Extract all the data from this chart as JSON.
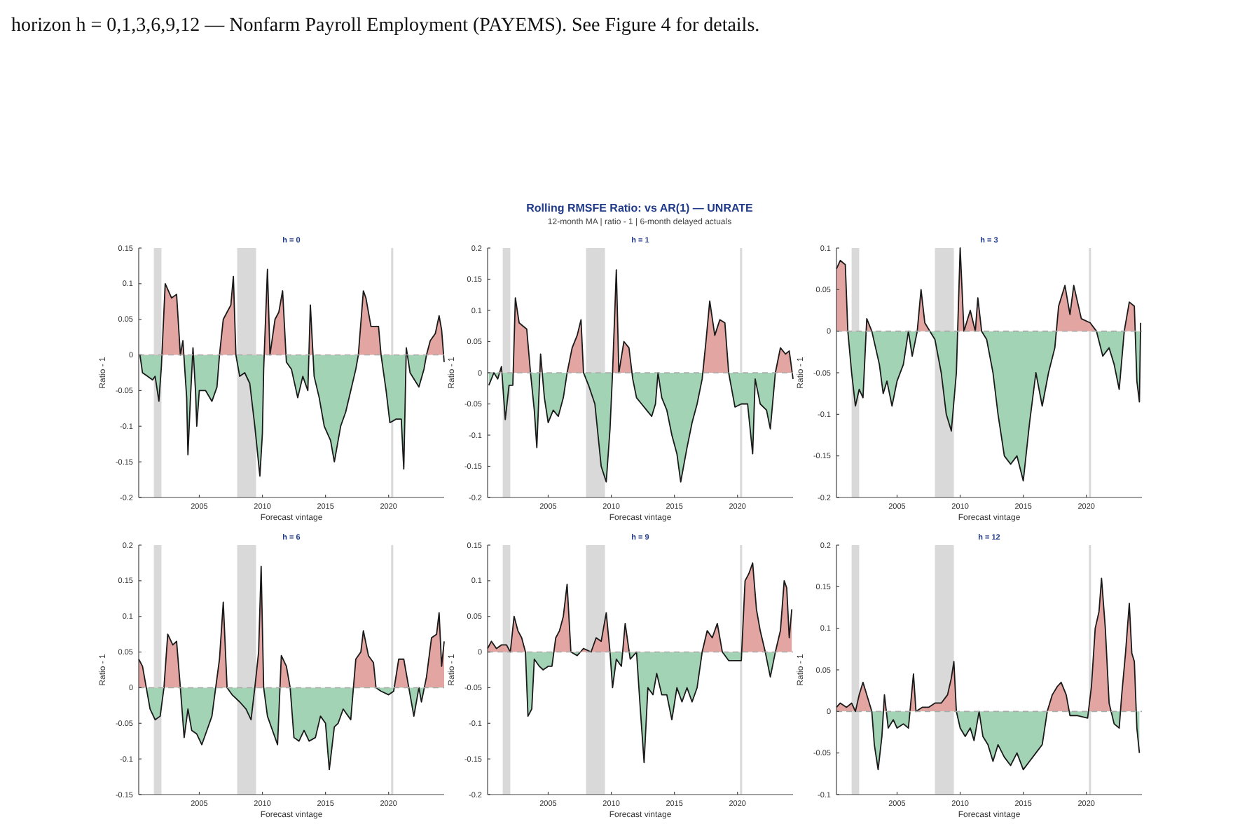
{
  "chart_data": [
    {
      "type": "area",
      "title": "h = 0",
      "xlabel": "Forecast vintage",
      "ylabel": "Ratio - 1",
      "xlim": [
        2000.2,
        2024.4
      ],
      "xticks": [
        2005,
        2010,
        2015,
        2020
      ],
      "ylim": [
        -0.2,
        0.15
      ],
      "yticks": [
        -0.2,
        -0.15,
        -0.1,
        -0.05,
        0,
        0.05,
        0.1,
        0.15
      ],
      "colors": [
        "#e3a5a1",
        "#a3d3b5"
      ],
      "annotations": [
        "horizon h = 0,1,3,6,9,12 — Nonfarm Payroll Employment (PAYEMS). See Figure 4 for details.",
        "Rolling RMSFE Ratio: vs AR(1) — UNRATE",
        "12-month MA  |  ratio - 1  |  6-month delayed actuals"
      ],
      "bands": [
        {
          "axis": "x",
          "from": 2001.4,
          "to": 2002.0,
          "color": "#d9d9d9"
        },
        {
          "axis": "x",
          "from": 2008.0,
          "to": 2009.5,
          "color": "#d9d9d9"
        },
        {
          "axis": "x",
          "from": 2020.2,
          "to": 2020.35,
          "color": "#d9d9d9"
        }
      ],
      "ref_lines": [
        {
          "axis": "y",
          "value": 0,
          "color": "#aaaaaa",
          "line_style": "dashed"
        }
      ],
      "series": [
        {
          "color": "#1a1a1a",
          "x": [
            2000.3,
            2000.5,
            2000.9,
            2001.3,
            2001.5,
            2001.8,
            2002.0,
            2002.3,
            2002.8,
            2003.2,
            2003.5,
            2003.7,
            2004.0,
            2004.1,
            2004.3,
            2004.5,
            2004.7,
            2004.8,
            2005.0,
            2005.5,
            2006.0,
            2006.4,
            2006.6,
            2006.9,
            2007.2,
            2007.5,
            2007.7,
            2007.9,
            2008.2,
            2008.6,
            2009.0,
            2009.4,
            2009.8,
            2010.0,
            2010.1,
            2010.4,
            2010.6,
            2011.0,
            2011.3,
            2011.6,
            2011.9,
            2012.3,
            2012.8,
            2013.2,
            2013.6,
            2013.8,
            2014.1,
            2014.5,
            2014.9,
            2015.4,
            2015.7,
            2016.2,
            2016.6,
            2017.0,
            2017.4,
            2017.6,
            2018.0,
            2018.2,
            2018.6,
            2019.2,
            2019.4,
            2019.8,
            2020.1,
            2020.6,
            2021.0,
            2021.2,
            2021.4,
            2021.7,
            2022.4,
            2022.8,
            2023.0,
            2023.3,
            2023.7,
            2024.0,
            2024.2,
            2024.4
          ],
          "values": [
            0,
            -0.025,
            -0.03,
            -0.035,
            -0.03,
            -0.065,
            -0.015,
            0.1,
            0.08,
            0.085,
            0,
            0.02,
            -0.06,
            -0.14,
            -0.06,
            0.01,
            -0.05,
            -0.1,
            -0.05,
            -0.05,
            -0.065,
            -0.045,
            0,
            0.05,
            0.06,
            0.07,
            0.11,
            0,
            -0.03,
            -0.025,
            -0.04,
            -0.1,
            -0.17,
            -0.11,
            -0.02,
            0.12,
            0,
            0.05,
            0.06,
            0.09,
            -0.01,
            -0.02,
            -0.06,
            -0.03,
            -0.05,
            0.07,
            -0.03,
            -0.06,
            -0.1,
            -0.12,
            -0.15,
            -0.1,
            -0.08,
            -0.05,
            -0.02,
            0,
            0.09,
            0.08,
            0.04,
            0.04,
            0,
            -0.05,
            -0.095,
            -0.09,
            -0.09,
            -0.16,
            0.01,
            -0.025,
            -0.045,
            -0.02,
            0,
            0.02,
            0.03,
            0.055,
            0.035,
            -0.01
          ]
        }
      ]
    },
    {
      "type": "area",
      "title": "h = 1",
      "xlabel": "Forecast vintage",
      "ylabel": "Ratio - 1",
      "xlim": [
        2000.2,
        2024.4
      ],
      "xticks": [
        2005,
        2010,
        2015,
        2020
      ],
      "ylim": [
        -0.2,
        0.2
      ],
      "yticks": [
        -0.2,
        -0.15,
        -0.1,
        -0.05,
        0,
        0.05,
        0.1,
        0.15,
        0.2
      ],
      "colors": [
        "#e3a5a1",
        "#a3d3b5"
      ],
      "bands": [
        {
          "axis": "x",
          "from": 2001.4,
          "to": 2002.0,
          "color": "#d9d9d9"
        },
        {
          "axis": "x",
          "from": 2008.0,
          "to": 2009.5,
          "color": "#d9d9d9"
        },
        {
          "axis": "x",
          "from": 2020.2,
          "to": 2020.35,
          "color": "#d9d9d9"
        }
      ],
      "ref_lines": [
        {
          "axis": "y",
          "value": 0,
          "color": "#aaaaaa",
          "line_style": "dashed"
        }
      ],
      "series": [
        {
          "color": "#1a1a1a",
          "x": [
            2000.3,
            2000.7,
            2001.0,
            2001.3,
            2001.6,
            2001.9,
            2002.2,
            2002.4,
            2002.7,
            2003.0,
            2003.3,
            2003.6,
            2003.9,
            2004.1,
            2004.4,
            2004.7,
            2005.0,
            2005.4,
            2005.8,
            2006.2,
            2006.5,
            2006.9,
            2007.3,
            2007.6,
            2007.8,
            2008.2,
            2008.7,
            2009.2,
            2009.6,
            2009.9,
            2010.1,
            2010.4,
            2010.6,
            2011.0,
            2011.4,
            2011.7,
            2012.0,
            2012.4,
            2012.8,
            2013.2,
            2013.5,
            2013.7,
            2014.0,
            2014.4,
            2014.8,
            2015.2,
            2015.5,
            2016.0,
            2016.4,
            2016.8,
            2017.2,
            2017.5,
            2017.8,
            2018.2,
            2018.6,
            2019.0,
            2019.3,
            2019.8,
            2020.3,
            2020.8,
            2021.2,
            2021.4,
            2021.8,
            2022.3,
            2022.6,
            2023.0,
            2023.4,
            2023.8,
            2024.1,
            2024.4
          ],
          "values": [
            -0.02,
            0,
            -0.01,
            0.01,
            -0.075,
            -0.02,
            -0.02,
            0.12,
            0.08,
            0.075,
            0.07,
            0,
            -0.06,
            -0.12,
            0.03,
            -0.04,
            -0.08,
            -0.06,
            -0.07,
            -0.04,
            0,
            0.04,
            0.06,
            0.085,
            0,
            -0.02,
            -0.05,
            -0.15,
            -0.175,
            -0.09,
            0,
            0.165,
            0,
            0.05,
            0.04,
            -0.01,
            -0.04,
            -0.05,
            -0.06,
            -0.07,
            -0.05,
            0,
            -0.04,
            -0.06,
            -0.1,
            -0.13,
            -0.175,
            -0.12,
            -0.08,
            -0.05,
            -0.01,
            0.05,
            0.115,
            0.06,
            0.085,
            0.08,
            0,
            -0.055,
            -0.05,
            -0.05,
            -0.13,
            -0.01,
            -0.05,
            -0.06,
            -0.09,
            0,
            0.04,
            0.03,
            0.035,
            -0.01
          ]
        }
      ]
    },
    {
      "type": "area",
      "title": "h = 3",
      "xlabel": "Forecast vintage",
      "ylabel": "Ratio - 1",
      "xlim": [
        2000.2,
        2024.4
      ],
      "xticks": [
        2005,
        2010,
        2015,
        2020
      ],
      "ylim": [
        -0.2,
        0.1
      ],
      "yticks": [
        -0.2,
        -0.15,
        -0.1,
        -0.05,
        0,
        0.05,
        0.1
      ],
      "colors": [
        "#e3a5a1",
        "#a3d3b5"
      ],
      "bands": [
        {
          "axis": "x",
          "from": 2001.4,
          "to": 2002.0,
          "color": "#d9d9d9"
        },
        {
          "axis": "x",
          "from": 2008.0,
          "to": 2009.5,
          "color": "#d9d9d9"
        },
        {
          "axis": "x",
          "from": 2020.2,
          "to": 2020.35,
          "color": "#d9d9d9"
        }
      ],
      "ref_lines": [
        {
          "axis": "y",
          "value": 0,
          "color": "#aaaaaa",
          "line_style": "dashed"
        }
      ],
      "series": [
        {
          "color": "#1a1a1a",
          "x": [
            2000.2,
            2000.5,
            2000.9,
            2001.1,
            2001.4,
            2001.7,
            2002.0,
            2002.3,
            2002.6,
            2003.0,
            2003.3,
            2003.6,
            2003.9,
            2004.2,
            2004.6,
            2005.0,
            2005.5,
            2005.9,
            2006.2,
            2006.6,
            2006.9,
            2007.2,
            2007.6,
            2008.0,
            2008.5,
            2008.9,
            2009.3,
            2009.7,
            2010.0,
            2010.3,
            2010.8,
            2011.2,
            2011.4,
            2011.7,
            2012.1,
            2012.6,
            2013.0,
            2013.5,
            2014.0,
            2014.5,
            2015.0,
            2015.5,
            2016.0,
            2016.5,
            2017.0,
            2017.5,
            2017.8,
            2018.3,
            2018.7,
            2019.0,
            2019.6,
            2020.3,
            2020.8,
            2021.3,
            2021.8,
            2022.2,
            2022.6,
            2023.0,
            2023.4,
            2023.8,
            2024.0,
            2024.2,
            2024.3
          ],
          "values": [
            0.075,
            0.085,
            0.08,
            0,
            -0.05,
            -0.09,
            -0.07,
            -0.08,
            0.015,
            0,
            -0.02,
            -0.04,
            -0.075,
            -0.06,
            -0.09,
            -0.06,
            -0.04,
            0,
            -0.03,
            0,
            0.05,
            0.01,
            0,
            -0.01,
            -0.05,
            -0.1,
            -0.12,
            -0.05,
            0.1,
            0,
            0.025,
            0,
            0.04,
            0,
            -0.01,
            -0.05,
            -0.1,
            -0.15,
            -0.16,
            -0.15,
            -0.18,
            -0.11,
            -0.05,
            -0.09,
            -0.05,
            -0.02,
            0.03,
            0.055,
            0.02,
            0.055,
            0.015,
            0.01,
            0,
            -0.03,
            -0.02,
            -0.04,
            -0.07,
            0,
            0.035,
            0.03,
            -0.06,
            -0.085,
            0.01
          ]
        }
      ]
    },
    {
      "type": "area",
      "title": "h = 6",
      "xlabel": "Forecast vintage",
      "ylabel": "Ratio - 1",
      "xlim": [
        2000.2,
        2024.4
      ],
      "xticks": [
        2005,
        2010,
        2015,
        2020
      ],
      "ylim": [
        -0.15,
        0.2
      ],
      "yticks": [
        -0.15,
        -0.1,
        -0.05,
        0,
        0.05,
        0.1,
        0.15,
        0.2
      ],
      "colors": [
        "#e3a5a1",
        "#a3d3b5"
      ],
      "bands": [
        {
          "axis": "x",
          "from": 2001.4,
          "to": 2002.0,
          "color": "#d9d9d9"
        },
        {
          "axis": "x",
          "from": 2008.0,
          "to": 2009.5,
          "color": "#d9d9d9"
        },
        {
          "axis": "x",
          "from": 2020.2,
          "to": 2020.35,
          "color": "#d9d9d9"
        }
      ],
      "ref_lines": [
        {
          "axis": "y",
          "value": 0,
          "color": "#aaaaaa",
          "line_style": "dashed"
        }
      ],
      "series": [
        {
          "color": "#1a1a1a",
          "x": [
            2000.2,
            2000.5,
            2000.8,
            2001.1,
            2001.5,
            2001.9,
            2002.2,
            2002.5,
            2002.9,
            2003.2,
            2003.5,
            2003.8,
            2004.1,
            2004.4,
            2004.8,
            2005.2,
            2005.6,
            2006.0,
            2006.3,
            2006.6,
            2006.9,
            2007.2,
            2007.6,
            2008.2,
            2008.7,
            2009.1,
            2009.4,
            2009.7,
            2009.9,
            2010.1,
            2010.4,
            2010.8,
            2011.2,
            2011.5,
            2011.9,
            2012.2,
            2012.5,
            2012.9,
            2013.3,
            2013.7,
            2014.2,
            2014.6,
            2015.0,
            2015.3,
            2015.7,
            2016.0,
            2016.4,
            2016.8,
            2017.0,
            2017.4,
            2017.8,
            2018.0,
            2018.4,
            2018.8,
            2019.0,
            2019.4,
            2020.0,
            2020.4,
            2020.8,
            2021.2,
            2021.6,
            2022.0,
            2022.4,
            2022.6,
            2023.0,
            2023.4,
            2023.8,
            2024.0,
            2024.2,
            2024.4
          ],
          "values": [
            0.04,
            0.03,
            0,
            -0.03,
            -0.045,
            -0.04,
            0,
            0.075,
            0.06,
            0.065,
            0,
            -0.07,
            -0.03,
            -0.06,
            -0.065,
            -0.08,
            -0.06,
            -0.04,
            0,
            0.04,
            0.12,
            0,
            -0.01,
            -0.02,
            -0.03,
            -0.045,
            0,
            0.05,
            0.17,
            0,
            -0.04,
            -0.06,
            -0.08,
            0.045,
            0.03,
            0,
            -0.07,
            -0.075,
            -0.06,
            -0.075,
            -0.07,
            -0.04,
            -0.05,
            -0.115,
            -0.055,
            -0.05,
            -0.03,
            -0.04,
            -0.045,
            0.04,
            0.05,
            0.08,
            0.045,
            0.035,
            0,
            -0.005,
            -0.01,
            -0.005,
            0.04,
            0.04,
            0,
            -0.04,
            0,
            -0.02,
            0.015,
            0.07,
            0.075,
            0.105,
            0.03,
            0.065
          ]
        }
      ]
    },
    {
      "type": "area",
      "title": "h = 9",
      "xlabel": "Forecast vintage",
      "ylabel": "Ratio - 1",
      "xlim": [
        2000.2,
        2024.4
      ],
      "xticks": [
        2005,
        2010,
        2015,
        2020
      ],
      "ylim": [
        -0.2,
        0.15
      ],
      "yticks": [
        -0.2,
        -0.15,
        -0.1,
        -0.05,
        0,
        0.05,
        0.1,
        0.15
      ],
      "colors": [
        "#e3a5a1",
        "#a3d3b5"
      ],
      "bands": [
        {
          "axis": "x",
          "from": 2001.4,
          "to": 2002.0,
          "color": "#d9d9d9"
        },
        {
          "axis": "x",
          "from": 2008.0,
          "to": 2009.5,
          "color": "#d9d9d9"
        },
        {
          "axis": "x",
          "from": 2020.2,
          "to": 2020.35,
          "color": "#d9d9d9"
        }
      ],
      "ref_lines": [
        {
          "axis": "y",
          "value": 0,
          "color": "#aaaaaa",
          "line_style": "dashed"
        }
      ],
      "series": [
        {
          "color": "#1a1a1a",
          "x": [
            2000.2,
            2000.5,
            2000.9,
            2001.3,
            2001.7,
            2002.0,
            2002.3,
            2002.6,
            2002.9,
            2003.2,
            2003.4,
            2003.7,
            2003.9,
            2004.3,
            2004.6,
            2005.0,
            2005.3,
            2005.6,
            2005.9,
            2006.2,
            2006.5,
            2006.8,
            2007.3,
            2007.8,
            2008.4,
            2008.8,
            2009.2,
            2009.6,
            2009.9,
            2010.1,
            2010.4,
            2010.8,
            2011.1,
            2011.5,
            2012.0,
            2012.3,
            2012.6,
            2012.9,
            2013.3,
            2013.6,
            2014.0,
            2014.4,
            2014.8,
            2015.2,
            2015.6,
            2016.0,
            2016.4,
            2016.8,
            2017.2,
            2017.6,
            2018.0,
            2018.4,
            2018.8,
            2019.3,
            2020.3,
            2020.6,
            2020.9,
            2021.2,
            2021.5,
            2021.8,
            2022.2,
            2022.6,
            2023.0,
            2023.4,
            2023.7,
            2023.9,
            2024.1,
            2024.3
          ],
          "values": [
            0.005,
            0.015,
            0.005,
            0.01,
            0.01,
            0,
            0.05,
            0.03,
            0.02,
            0,
            -0.09,
            -0.08,
            -0.01,
            -0.02,
            -0.025,
            -0.02,
            -0.02,
            0.02,
            0.03,
            0.05,
            0.095,
            0,
            -0.005,
            0.005,
            0,
            0.02,
            0.015,
            0.055,
            0,
            -0.05,
            -0.01,
            -0.02,
            0.04,
            -0.01,
            0,
            -0.08,
            -0.155,
            -0.05,
            -0.06,
            -0.03,
            -0.06,
            -0.06,
            -0.095,
            -0.05,
            -0.07,
            -0.05,
            -0.07,
            -0.05,
            0,
            0.03,
            0.02,
            0.04,
            0,
            -0.012,
            -0.012,
            0.1,
            0.11,
            0.125,
            0.06,
            0.03,
            0,
            -0.035,
            0,
            0.03,
            0.1,
            0.09,
            0.02,
            0.06
          ]
        }
      ]
    },
    {
      "type": "area",
      "title": "h = 12",
      "xlabel": "Forecast vintage",
      "ylabel": "Ratio - 1",
      "xlim": [
        2000.2,
        2024.4
      ],
      "xticks": [
        2005,
        2010,
        2015,
        2020
      ],
      "ylim": [
        -0.1,
        0.2
      ],
      "yticks": [
        -0.1,
        -0.05,
        0,
        0.05,
        0.1,
        0.15,
        0.2
      ],
      "colors": [
        "#e3a5a1",
        "#a3d3b5"
      ],
      "bands": [
        {
          "axis": "x",
          "from": 2001.4,
          "to": 2002.0,
          "color": "#d9d9d9"
        },
        {
          "axis": "x",
          "from": 2008.0,
          "to": 2009.5,
          "color": "#d9d9d9"
        },
        {
          "axis": "x",
          "from": 2020.2,
          "to": 2020.35,
          "color": "#d9d9d9"
        }
      ],
      "ref_lines": [
        {
          "axis": "y",
          "value": 0,
          "color": "#aaaaaa",
          "line_style": "dashed"
        }
      ],
      "series": [
        {
          "color": "#1a1a1a",
          "x": [
            2000.2,
            2000.5,
            2001.0,
            2001.4,
            2001.7,
            2002.0,
            2002.3,
            2002.7,
            2003.0,
            2003.2,
            2003.5,
            2003.8,
            2004.0,
            2004.3,
            2004.7,
            2005.0,
            2005.5,
            2005.9,
            2006.3,
            2006.5,
            2007.0,
            2007.5,
            2008.0,
            2008.5,
            2009.0,
            2009.3,
            2009.5,
            2009.7,
            2010.0,
            2010.4,
            2010.8,
            2011.1,
            2011.5,
            2011.8,
            2012.2,
            2012.6,
            2013.0,
            2013.5,
            2014.0,
            2014.5,
            2015.0,
            2015.5,
            2016.0,
            2016.5,
            2016.9,
            2017.3,
            2017.7,
            2018.0,
            2018.4,
            2018.7,
            2019.3,
            2020.1,
            2020.4,
            2020.7,
            2021.0,
            2021.2,
            2021.5,
            2021.8,
            2022.2,
            2022.6,
            2022.8,
            2023.1,
            2023.4,
            2023.6,
            2023.8,
            2024.0,
            2024.2
          ],
          "values": [
            0.005,
            0.01,
            0.005,
            0.01,
            0,
            0.02,
            0.035,
            0.015,
            0,
            -0.04,
            -0.07,
            -0.03,
            0.02,
            -0.02,
            -0.01,
            -0.02,
            -0.015,
            -0.02,
            0.045,
            0,
            0.005,
            0.005,
            0.01,
            0.01,
            0.02,
            0.04,
            0.06,
            0,
            -0.02,
            -0.03,
            -0.02,
            -0.035,
            0,
            -0.03,
            -0.04,
            -0.06,
            -0.04,
            -0.055,
            -0.065,
            -0.05,
            -0.07,
            -0.06,
            -0.05,
            -0.04,
            0,
            0.02,
            0.03,
            0.035,
            0.02,
            -0.005,
            -0.005,
            -0.008,
            0.03,
            0.1,
            0.12,
            0.16,
            0.1,
            0.01,
            -0.015,
            -0.02,
            0.02,
            0.07,
            0.13,
            0.07,
            0.06,
            -0.02,
            -0.05
          ]
        }
      ]
    }
  ]
}
